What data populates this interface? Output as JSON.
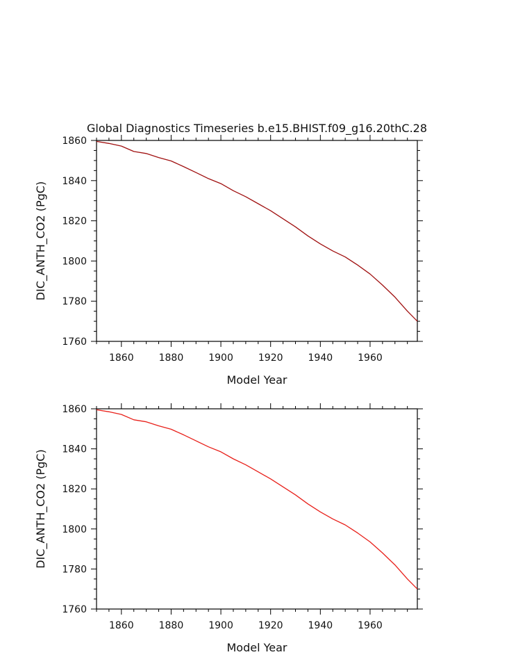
{
  "title": "Global Diagnostics Timeseries b.e15.BHIST.f09_g16.20thC.28",
  "chart_data": [
    {
      "type": "line",
      "xlabel": "Model Year",
      "ylabel": "DIC_ANTH_CO2 (PgC)",
      "xlim": [
        1850,
        1979
      ],
      "ylim": [
        1760,
        1860
      ],
      "xticks": [
        1860,
        1880,
        1900,
        1920,
        1940,
        1960
      ],
      "yticks": [
        1760,
        1780,
        1800,
        1820,
        1840,
        1860
      ],
      "grid": false,
      "series": [
        {
          "color": "#a01010",
          "x": [
            1850,
            1855,
            1860,
            1865,
            1870,
            1875,
            1880,
            1885,
            1890,
            1895,
            1900,
            1905,
            1910,
            1915,
            1920,
            1925,
            1930,
            1935,
            1940,
            1945,
            1950,
            1955,
            1960,
            1965,
            1970,
            1975,
            1979
          ],
          "y": [
            1859.5,
            1858.5,
            1857.2,
            1854.5,
            1853.5,
            1851.5,
            1849.8,
            1847.0,
            1844.0,
            1841.0,
            1838.5,
            1835.0,
            1832.0,
            1828.5,
            1825.0,
            1821.0,
            1817.0,
            1812.5,
            1808.5,
            1805.0,
            1802.0,
            1798.0,
            1793.5,
            1788.0,
            1782.0,
            1775.0,
            1770.0
          ]
        }
      ]
    },
    {
      "type": "line",
      "xlabel": "Model Year",
      "ylabel": "DIC_ANTH_CO2 (PgC)",
      "xlim": [
        1850,
        1979
      ],
      "ylim": [
        1760,
        1860
      ],
      "xticks": [
        1860,
        1880,
        1900,
        1920,
        1940,
        1960
      ],
      "yticks": [
        1760,
        1780,
        1800,
        1820,
        1840,
        1860
      ],
      "grid": false,
      "series": [
        {
          "color": "#e8201a",
          "x": [
            1850,
            1855,
            1860,
            1865,
            1870,
            1875,
            1880,
            1885,
            1890,
            1895,
            1900,
            1905,
            1910,
            1915,
            1920,
            1925,
            1930,
            1935,
            1940,
            1945,
            1950,
            1955,
            1960,
            1965,
            1970,
            1975,
            1979
          ],
          "y": [
            1859.5,
            1858.5,
            1857.2,
            1854.5,
            1853.5,
            1851.5,
            1849.8,
            1847.0,
            1844.0,
            1841.0,
            1838.5,
            1835.0,
            1832.0,
            1828.5,
            1825.0,
            1821.0,
            1817.0,
            1812.5,
            1808.5,
            1805.0,
            1802.0,
            1798.0,
            1793.5,
            1788.0,
            1782.0,
            1775.0,
            1770.0
          ]
        }
      ]
    }
  ]
}
